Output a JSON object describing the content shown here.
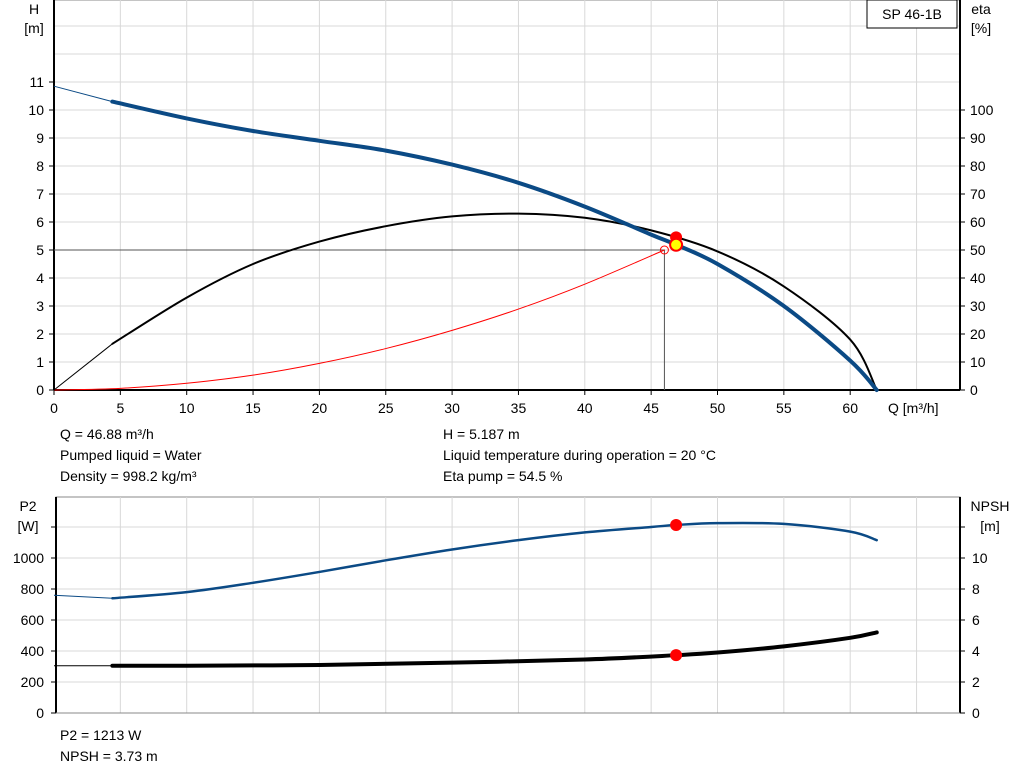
{
  "legend_label": "SP 46-1B",
  "info_top": {
    "q": "Q = 46.88 m³/h",
    "liquid": "Pumped liquid = Water",
    "density": "Density = 998.2 kg/m³",
    "h": "H = 5.187 m",
    "temp": "Liquid temperature during operation = 20 °C",
    "eta": "Eta pump = 54.5 %"
  },
  "info_bottom": {
    "p2": "P2 = 1213 W",
    "npsh": "NPSH = 3.73 m"
  },
  "colors": {
    "head": "#0b4a85",
    "eta": "#000000",
    "system": "#ff0000",
    "p2": "#0b4a85",
    "npsh": "#000000",
    "marker": "#ff0000",
    "marker_fill_head": "#ffff00"
  },
  "chart_data": [
    {
      "type": "line",
      "xlabel": "Q [m³/h]",
      "ylabel": "H",
      "ylabel_unit": "[m]",
      "y2label": "eta",
      "y2label_unit": "[%]",
      "xlim": [
        0,
        68
      ],
      "ylim": [
        0,
        14
      ],
      "y2lim": [
        0,
        140
      ],
      "grid": true,
      "xticks": [
        0,
        5,
        10,
        15,
        20,
        25,
        30,
        35,
        40,
        45,
        50,
        55,
        60
      ],
      "yticks": [
        0,
        1,
        2,
        3,
        4,
        5,
        6,
        7,
        8,
        9,
        10,
        11
      ],
      "y2ticks": [
        0,
        10,
        20,
        30,
        40,
        50,
        60,
        70,
        80,
        90,
        100
      ],
      "series": [
        {
          "name": "H",
          "axis": "y",
          "thin_until": 4.4,
          "x": [
            0,
            4.4,
            10,
            15,
            20,
            25,
            30,
            35,
            40,
            45,
            46.88,
            50,
            55,
            60,
            62
          ],
          "y": [
            10.85,
            10.3,
            9.7,
            9.25,
            8.9,
            8.55,
            8.05,
            7.4,
            6.55,
            5.55,
            5.187,
            4.5,
            3.0,
            1.05,
            0
          ]
        },
        {
          "name": "eta",
          "axis": "y2",
          "thin_until": 4.4,
          "x": [
            0,
            4.4,
            10,
            15,
            20,
            25,
            30,
            35,
            40,
            45,
            50,
            55,
            60,
            62
          ],
          "y": [
            0,
            16.5,
            33,
            45,
            53,
            58.5,
            62,
            63,
            61.5,
            57,
            49.5,
            37,
            18,
            0
          ]
        },
        {
          "name": "system",
          "axis": "y",
          "x": [
            0,
            5,
            10,
            15,
            20,
            25,
            30,
            35,
            40,
            46
          ],
          "y": [
            0,
            0.06,
            0.24,
            0.53,
            0.95,
            1.48,
            2.13,
            2.89,
            3.78,
            5.0
          ]
        }
      ],
      "operating_point": {
        "q": 46.88,
        "h": 5.187,
        "eta": 54.5
      },
      "requested_point": {
        "q": 46,
        "h": 5
      }
    },
    {
      "type": "line",
      "ylabel": "P2",
      "ylabel_unit": "[W]",
      "y2label": "NPSH",
      "y2label_unit": "[m]",
      "xlim": [
        0,
        68
      ],
      "ylim": [
        0,
        1400
      ],
      "y2lim": [
        0,
        14
      ],
      "grid": true,
      "yticks": [
        0,
        200,
        400,
        600,
        800,
        1000
      ],
      "y2ticks": [
        0,
        2,
        4,
        6,
        8,
        10
      ],
      "series": [
        {
          "name": "P2",
          "axis": "y",
          "thin_until": 4.4,
          "x": [
            0,
            4.4,
            10,
            15,
            20,
            25,
            30,
            35,
            40,
            45,
            46.88,
            50,
            55,
            60,
            62
          ],
          "y": [
            760,
            740,
            780,
            840,
            910,
            985,
            1055,
            1115,
            1165,
            1200,
            1213,
            1225,
            1220,
            1170,
            1115
          ]
        },
        {
          "name": "NPSH",
          "axis": "y2",
          "thin_until": 4.4,
          "x": [
            0,
            4.4,
            10,
            20,
            30,
            40,
            46.88,
            50,
            55,
            60,
            62
          ],
          "y": [
            3.05,
            3.05,
            3.05,
            3.1,
            3.25,
            3.45,
            3.73,
            3.9,
            4.3,
            4.85,
            5.2
          ]
        }
      ],
      "operating_point": {
        "q": 46.88,
        "p2": 1213,
        "npsh": 3.73
      }
    }
  ]
}
